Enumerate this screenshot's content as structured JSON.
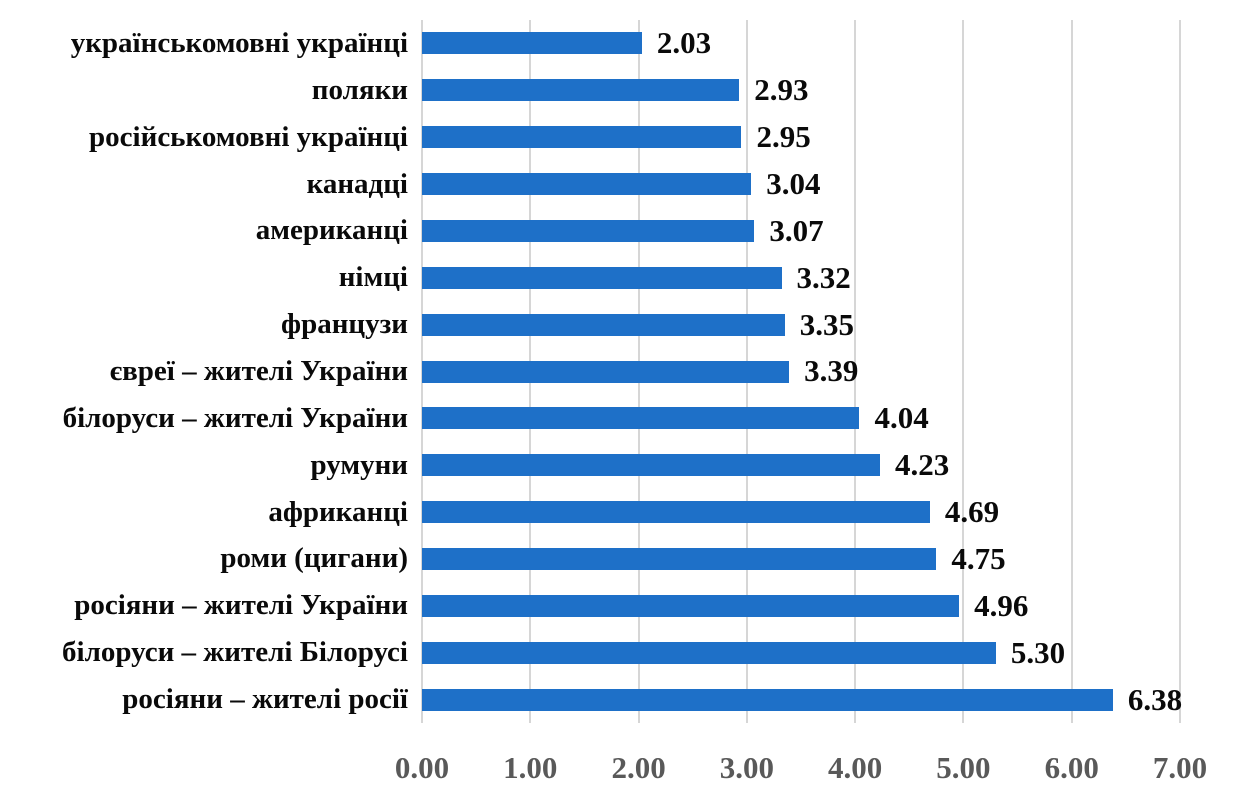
{
  "chart_data": {
    "type": "bar",
    "orientation": "horizontal",
    "title": "",
    "xlabel": "",
    "ylabel": "",
    "xlim": [
      0,
      7
    ],
    "grid": true,
    "legend": "none",
    "categories": [
      "українськомовні українці",
      "поляки",
      "російськомовні українці",
      "канадці",
      "американці",
      "німці",
      "французи",
      "євреї – жителі України",
      "білоруси – жителі України",
      "румуни",
      "африканці",
      "роми (цигани)",
      "росіяни – жителі України",
      "білоруси – жителі Білорусі",
      "росіяни – жителі росії"
    ],
    "values": [
      2.03,
      2.93,
      2.95,
      3.04,
      3.07,
      3.32,
      3.35,
      3.39,
      4.04,
      4.23,
      4.69,
      4.75,
      4.96,
      5.3,
      6.38
    ],
    "value_labels": [
      "2.03",
      "2.93",
      "2.95",
      "3.04",
      "3.07",
      "3.32",
      "3.35",
      "3.39",
      "4.04",
      "4.23",
      "4.69",
      "4.75",
      "4.96",
      "5.30",
      "6.38"
    ],
    "x_ticks": [
      "0.00",
      "1.00",
      "2.00",
      "3.00",
      "4.00",
      "5.00",
      "6.00",
      "7.00"
    ],
    "x_tick_values": [
      0,
      1,
      2,
      3,
      4,
      5,
      6,
      7
    ],
    "colors": {
      "bar": "#1E70C8",
      "gridline": "#D6D6D6",
      "tick_label": "#595959",
      "text": "#0a0a0a",
      "background": "#ffffff"
    }
  }
}
